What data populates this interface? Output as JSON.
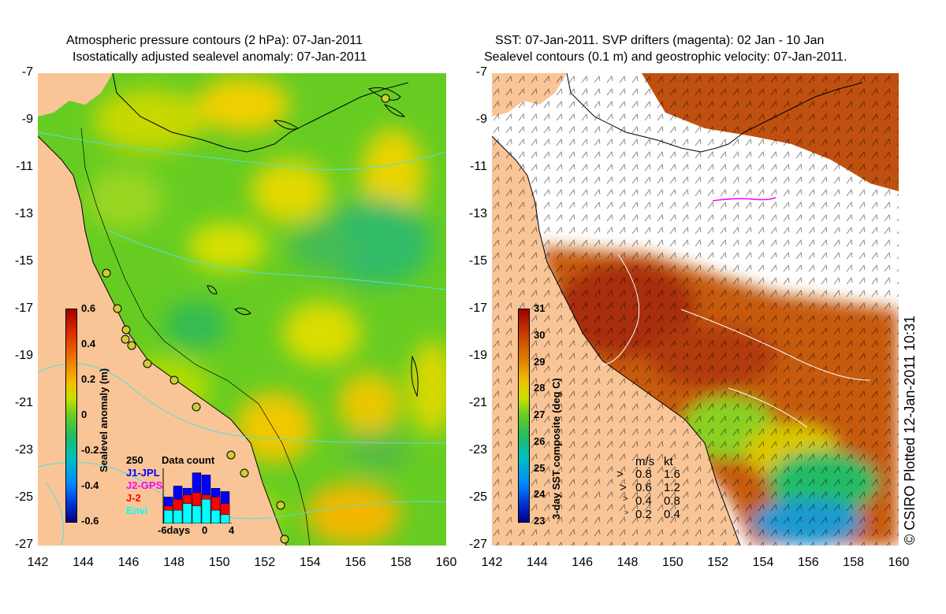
{
  "colors": {
    "land": "#f9c597",
    "sea_green": "#66cc22",
    "coast": "#000000",
    "contour": "#55dddd",
    "sst_hot": "#b8400e",
    "cloud": "#ffffff"
  },
  "left_panel": {
    "title_line1": "Atmospheric pressure contours (2 hPa): 07-Jan-2011",
    "title_line2": "Isostatically adjusted sealevel anomaly: 07-Jan-2011",
    "colorbar": {
      "label": "Sealevel anomaly (m)",
      "ticks": [
        "0.6",
        "0.4",
        "0.2",
        "0",
        "-0.2",
        "-0.4",
        "-0.6"
      ]
    },
    "inset": {
      "title": "Data count",
      "max_label": "250",
      "legend": [
        {
          "name": "J1-JPL",
          "color": "#0000ff"
        },
        {
          "name": "J2-GPS",
          "color": "#ff00ff"
        },
        {
          "name": "J-2",
          "color": "#ff0000"
        },
        {
          "name": "Envi",
          "color": "#00ffff"
        }
      ],
      "x_labels": [
        "-6days",
        "0",
        "4"
      ],
      "bars_total": [
        120,
        170,
        160,
        230,
        220,
        160,
        145
      ],
      "bars_j2": [
        80,
        110,
        130,
        140,
        130,
        120,
        90
      ],
      "bars_envi": [
        60,
        60,
        90,
        80,
        110,
        60,
        40
      ]
    }
  },
  "right_panel": {
    "title_line1": "SST: 07-Jan-2011. SVP drifters (magenta): 02 Jan - 10 Jan",
    "title_line2": "Sealevel contours (0.1 m) and geostrophic velocity: 07-Jan-2011.",
    "colorbar": {
      "label": "3-day SST composite (deg C)",
      "ticks": [
        "31",
        "30",
        "29",
        "28",
        "27",
        "26",
        "25",
        "24",
        "23"
      ]
    },
    "velocity_scale": {
      "header_ms": "m/s",
      "header_kt": "kt",
      "rows": [
        {
          "ms": "0.8",
          "kt": "1.6"
        },
        {
          "ms": "0.6",
          "kt": "1.2"
        },
        {
          "ms": "0.4",
          "kt": "0.8"
        },
        {
          "ms": "0.2",
          "kt": "0.4"
        }
      ]
    }
  },
  "axes": {
    "y_ticks": [
      "-7",
      "-9",
      "-11",
      "-13",
      "-15",
      "-17",
      "-19",
      "-21",
      "-23",
      "-25",
      "-27"
    ],
    "x_ticks": [
      "142",
      "144",
      "146",
      "148",
      "150",
      "152",
      "154",
      "156",
      "158",
      "160"
    ]
  },
  "credit": "© CSIRO Plotted 12-Jan-2011 10:31"
}
